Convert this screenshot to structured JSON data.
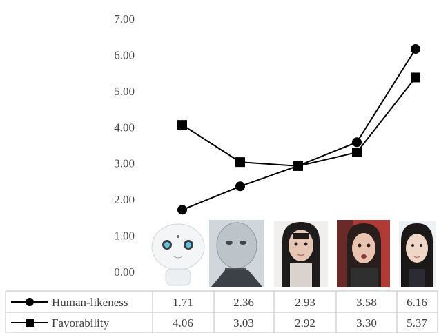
{
  "chart_data": {
    "type": "line",
    "categories": [
      "Pepper robot",
      "Android (mechanical)",
      "Android (female, Japanese)",
      "Android (female, speaking)",
      "Human woman"
    ],
    "ylim": [
      0,
      7
    ],
    "y_ticks": [
      "0.00",
      "1.00",
      "2.00",
      "3.00",
      "4.00",
      "5.00",
      "6.00",
      "7.00"
    ],
    "grid": false,
    "legend": "table-below",
    "series": [
      {
        "name": "Human-likeness",
        "marker": "circle",
        "color": "#000000",
        "values": [
          1.71,
          2.36,
          2.93,
          3.58,
          6.16
        ],
        "labels": [
          "1.71",
          "2.36",
          "2.93",
          "3.58",
          "6.16"
        ]
      },
      {
        "name": "Favorability",
        "marker": "square",
        "color": "#000000",
        "values": [
          4.06,
          3.03,
          2.92,
          3.3,
          5.37
        ],
        "labels": [
          "4.06",
          "3.03",
          "2.92",
          "3.30",
          "5.37"
        ]
      }
    ]
  }
}
